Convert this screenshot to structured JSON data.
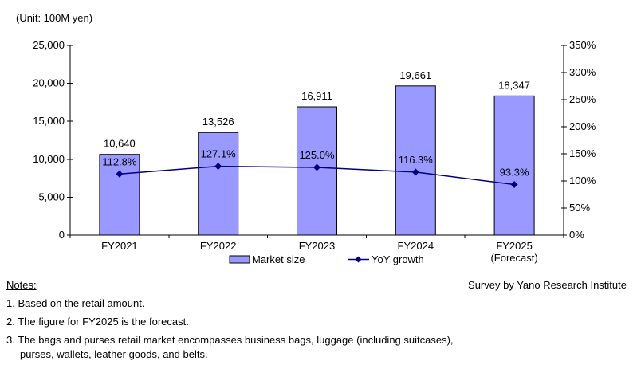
{
  "unit_label": "(Unit: 100M yen)",
  "chart_data": {
    "type": "bar+line",
    "categories": [
      "FY2021",
      "FY2022",
      "FY2023",
      "FY2024",
      "FY2025"
    ],
    "category_sublabels": [
      "",
      "",
      "",
      "",
      "(Forecast)"
    ],
    "series": [
      {
        "name": "Market size",
        "type": "bar",
        "axis": "left",
        "values": [
          10640,
          13526,
          16911,
          19661,
          18347
        ],
        "labels": [
          "10,640",
          "13,526",
          "16,911",
          "19,661",
          "18,347"
        ],
        "fill": "#9999FF",
        "border": "#000000"
      },
      {
        "name": "YoY growth",
        "type": "line",
        "axis": "right",
        "values": [
          112.8,
          127.1,
          125.0,
          116.3,
          93.3
        ],
        "labels": [
          "112.8%",
          "127.1%",
          "125.0%",
          "116.3%",
          "93.3%"
        ],
        "color": "#000080"
      }
    ],
    "left_axis": {
      "min": 0,
      "max": 25000,
      "tick_labels": [
        "0",
        "5,000",
        "10,000",
        "15,000",
        "20,000",
        "25,000"
      ]
    },
    "right_axis": {
      "min": 0,
      "max": 350,
      "tick_labels": [
        "0%",
        "50%",
        "100%",
        "150%",
        "200%",
        "250%",
        "300%",
        "350%"
      ]
    },
    "legend": {
      "market_size": "Market size",
      "yoy_growth": "YoY growth"
    },
    "grid": false,
    "legend_position": "bottom-center"
  },
  "notes": {
    "heading": "Notes:",
    "survey_credit": "Survey by Yano Research Institute",
    "lines": [
      "1. Based on the retail amount.",
      "2. The figure for FY2025 is the forecast.",
      "3. The bags and purses retail market encompasses business bags, luggage (including suitcases),",
      "purses, wallets, leather goods, and belts."
    ]
  }
}
